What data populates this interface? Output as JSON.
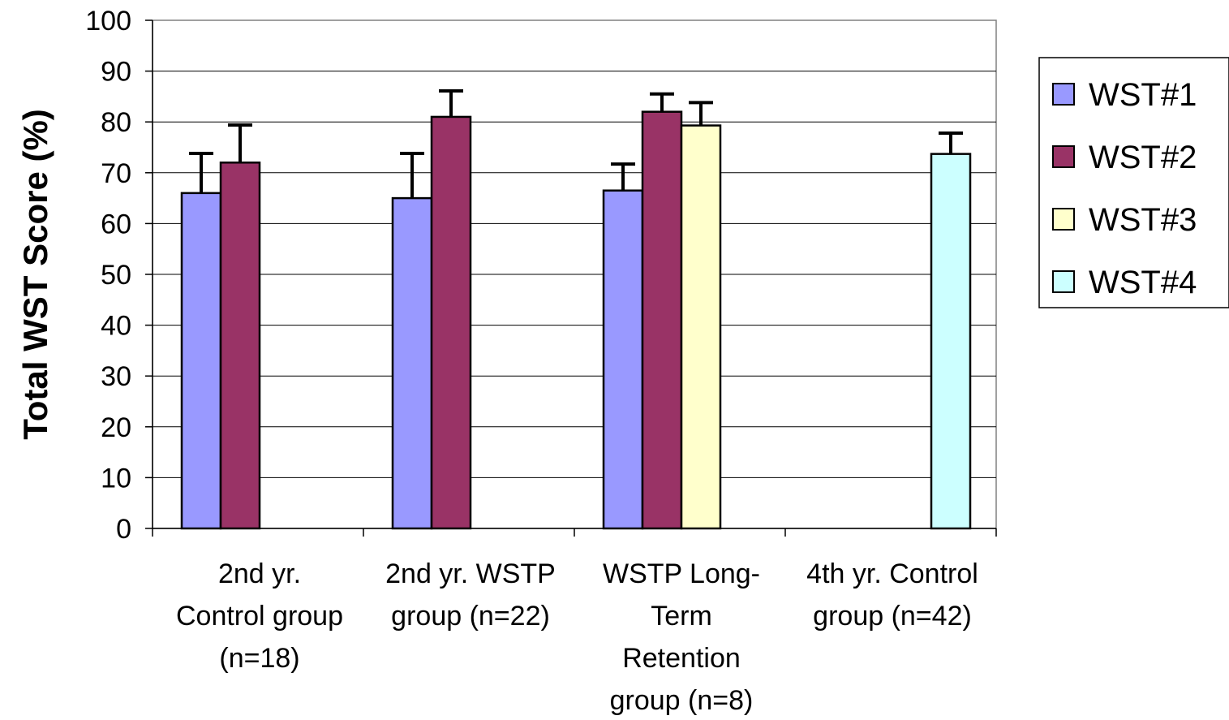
{
  "chart_data": {
    "type": "bar",
    "title": "",
    "xlabel": "",
    "ylabel": "Total WST Score (%)",
    "ylim": [
      0,
      100
    ],
    "yticks": [
      "0",
      "10",
      "20",
      "30",
      "40",
      "50",
      "60",
      "70",
      "80",
      "90",
      "100"
    ],
    "grid": true,
    "legend_position": "right",
    "categories": [
      [
        "2nd yr.",
        "Control group",
        "(n=18)"
      ],
      [
        "2nd yr. WSTP",
        "group (n=22)"
      ],
      [
        "WSTP Long-",
        "Term",
        "Retention",
        "group (n=8)"
      ],
      [
        "4th yr. Control",
        "group (n=42)"
      ]
    ],
    "series": [
      {
        "name": "WST#1",
        "color": "#9999ff",
        "values": [
          66,
          65,
          66.5,
          null
        ],
        "error": [
          7.8,
          8.8,
          5.2,
          null
        ]
      },
      {
        "name": "WST#2",
        "color": "#993366",
        "values": [
          72,
          81,
          82,
          null
        ],
        "error": [
          7.4,
          5.1,
          3.5,
          null
        ]
      },
      {
        "name": "WST#3",
        "color": "#ffffcc",
        "values": [
          null,
          null,
          79.3,
          null
        ],
        "error": [
          null,
          null,
          4.5,
          null
        ]
      },
      {
        "name": "WST#4",
        "color": "#ccffff",
        "values": [
          null,
          null,
          null,
          73.7
        ],
        "error": [
          null,
          null,
          null,
          4.1
        ]
      }
    ]
  }
}
